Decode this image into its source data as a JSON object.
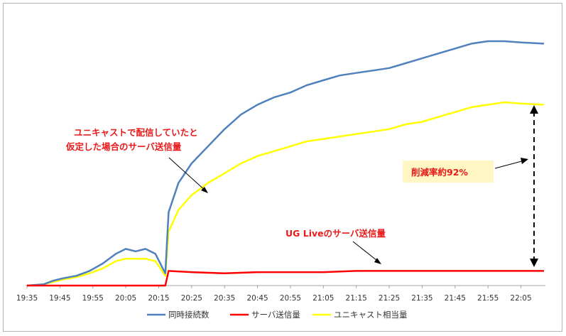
{
  "chart_data": {
    "type": "line",
    "title": "",
    "xlabel": "",
    "ylabel": "",
    "x_ticks": [
      "19:35",
      "19:45",
      "19:55",
      "20:05",
      "20:15",
      "20:25",
      "20:35",
      "20:45",
      "20:55",
      "21:05",
      "21:15",
      "21:25",
      "21:35",
      "21:45",
      "21:55",
      "22:05"
    ],
    "x_range": [
      "19:35",
      "22:12"
    ],
    "y_range": [
      0,
      100
    ],
    "grid": false,
    "legend_position": "bottom",
    "series": [
      {
        "name": "同時接続数",
        "color": "#4f81bd",
        "points": [
          [
            "19:35",
            0
          ],
          [
            "19:40",
            0.5
          ],
          [
            "19:43",
            2
          ],
          [
            "19:46",
            3
          ],
          [
            "19:50",
            4
          ],
          [
            "19:54",
            6
          ],
          [
            "19:58",
            9
          ],
          [
            "20:02",
            13
          ],
          [
            "20:05",
            15
          ],
          [
            "20:08",
            14
          ],
          [
            "20:11",
            15
          ],
          [
            "20:14",
            13
          ],
          [
            "20:17",
            5
          ],
          [
            "20:18",
            30
          ],
          [
            "20:21",
            42
          ],
          [
            "20:25",
            50
          ],
          [
            "20:30",
            57
          ],
          [
            "20:35",
            64
          ],
          [
            "20:40",
            70
          ],
          [
            "20:45",
            74
          ],
          [
            "20:50",
            77
          ],
          [
            "20:55",
            79
          ],
          [
            "21:00",
            82
          ],
          [
            "21:05",
            84
          ],
          [
            "21:10",
            86
          ],
          [
            "21:15",
            87
          ],
          [
            "21:20",
            88
          ],
          [
            "21:25",
            89
          ],
          [
            "21:30",
            91
          ],
          [
            "21:35",
            93
          ],
          [
            "21:40",
            95
          ],
          [
            "21:45",
            97
          ],
          [
            "21:50",
            99
          ],
          [
            "21:55",
            100
          ],
          [
            "22:00",
            100
          ],
          [
            "22:05",
            99.5
          ],
          [
            "22:12",
            99
          ]
        ]
      },
      {
        "name": "サーバ送信量",
        "color": "#ff0000",
        "points": [
          [
            "19:35",
            0
          ],
          [
            "19:45",
            0
          ],
          [
            "19:55",
            0
          ],
          [
            "20:05",
            0
          ],
          [
            "20:15",
            0
          ],
          [
            "20:17",
            0
          ],
          [
            "20:18",
            6
          ],
          [
            "20:25",
            5.5
          ],
          [
            "20:35",
            5
          ],
          [
            "20:45",
            5.5
          ],
          [
            "20:55",
            5.5
          ],
          [
            "21:05",
            5.5
          ],
          [
            "21:15",
            6
          ],
          [
            "21:25",
            6
          ],
          [
            "21:35",
            6
          ],
          [
            "21:45",
            6
          ],
          [
            "21:55",
            6
          ],
          [
            "22:05",
            6
          ],
          [
            "22:12",
            6
          ]
        ]
      },
      {
        "name": "ユニキャスト相当量",
        "color": "#ffff00",
        "points": [
          [
            "19:35",
            0
          ],
          [
            "19:40",
            0.5
          ],
          [
            "19:43",
            1.5
          ],
          [
            "19:46",
            2.5
          ],
          [
            "19:50",
            3.5
          ],
          [
            "19:54",
            5
          ],
          [
            "19:58",
            7
          ],
          [
            "20:02",
            10
          ],
          [
            "20:05",
            11
          ],
          [
            "20:08",
            11
          ],
          [
            "20:11",
            11
          ],
          [
            "20:14",
            10
          ],
          [
            "20:17",
            4
          ],
          [
            "20:18",
            22
          ],
          [
            "20:21",
            31
          ],
          [
            "20:25",
            37
          ],
          [
            "20:30",
            42
          ],
          [
            "20:35",
            46
          ],
          [
            "20:40",
            50
          ],
          [
            "20:45",
            53
          ],
          [
            "20:50",
            55
          ],
          [
            "20:55",
            57
          ],
          [
            "21:00",
            59
          ],
          [
            "21:05",
            60
          ],
          [
            "21:10",
            61
          ],
          [
            "21:15",
            62
          ],
          [
            "21:20",
            63
          ],
          [
            "21:25",
            64
          ],
          [
            "21:30",
            66
          ],
          [
            "21:35",
            67
          ],
          [
            "21:40",
            69
          ],
          [
            "21:45",
            71
          ],
          [
            "21:50",
            73
          ],
          [
            "21:55",
            74
          ],
          [
            "22:00",
            75
          ],
          [
            "22:05",
            74.5
          ],
          [
            "22:12",
            74
          ]
        ]
      }
    ],
    "annotations": [
      {
        "id": "unicast",
        "lines": [
          "ユニキャストで配信していたと",
          "仮定した場合のサーバ送信量"
        ]
      },
      {
        "id": "reduction",
        "text": "削減率約92%"
      },
      {
        "id": "uglive",
        "text": "UG Liveのサーバ送信量"
      }
    ]
  },
  "colors": {
    "axis": "#a6a6a6",
    "annotation_text": "#e81a1a",
    "callout_bg": "#fff6c4",
    "arrow": "#000000"
  }
}
